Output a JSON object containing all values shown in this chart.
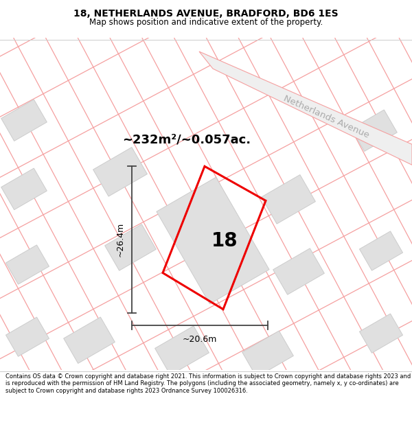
{
  "title": "18, NETHERLANDS AVENUE, BRADFORD, BD6 1ES",
  "subtitle": "Map shows position and indicative extent of the property.",
  "footer": "Contains OS data © Crown copyright and database right 2021. This information is subject to Crown copyright and database rights 2023 and is reproduced with the permission of HM Land Registry. The polygons (including the associated geometry, namely x, y co-ordinates) are subject to Crown copyright and database rights 2023 Ordnance Survey 100026316.",
  "area_label": "~232m²/~0.057ac.",
  "width_label": "~20.6m",
  "height_label": "~26.4m",
  "plot_number": "18",
  "street_label": "Netherlands Avenue",
  "bg_color": "#ffffff",
  "map_bg": "#ffffff",
  "plot_edge_color": "#ee0000",
  "building_fill": "#e0e0e0",
  "building_edge": "#cccccc",
  "road_line_color": "#f5a0a0",
  "dim_line_color": "#444444"
}
